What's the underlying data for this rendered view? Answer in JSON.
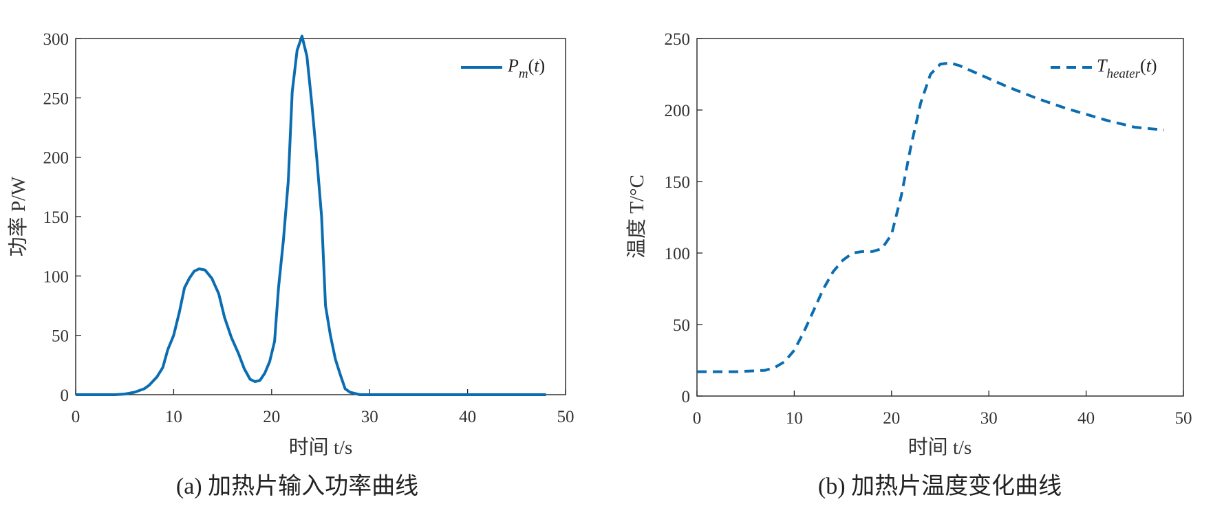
{
  "chart_data": [
    {
      "type": "line",
      "caption": "(a) 加热片输入功率曲线",
      "xlabel": "时间 t/s",
      "ylabel": "功率 P/W",
      "xlim": [
        0,
        50
      ],
      "ylim": [
        0,
        300
      ],
      "xticks": [
        "0",
        "10",
        "20",
        "30",
        "40",
        "50"
      ],
      "yticks": [
        "0",
        "50",
        "100",
        "150",
        "200",
        "250",
        "300"
      ],
      "legend": {
        "label": "P_m(t)",
        "position": "top-right"
      },
      "grid": false,
      "color": "#0b6db1",
      "dash": "solid",
      "series": [
        {
          "name": "Pm(t)",
          "x": [
            0,
            2,
            4,
            5,
            6,
            7,
            7.5,
            8.3,
            8.9,
            9.4,
            10,
            10.6,
            11.1,
            11.6,
            12.1,
            12.6,
            13.2,
            13.9,
            14.6,
            15.2,
            15.9,
            16.6,
            17.2,
            17.8,
            18.3,
            18.8,
            19.3,
            19.8,
            20.3,
            20.7,
            21.2,
            21.7,
            22.1,
            22.6,
            23.1,
            23.6,
            24.1,
            24.6,
            25.1,
            25.5,
            26,
            26.5,
            27,
            27.5,
            28,
            29,
            30,
            35,
            40,
            45,
            48
          ],
          "y": [
            0,
            0,
            0,
            0.5,
            2,
            5,
            8,
            15,
            23,
            38,
            50,
            70,
            90,
            98,
            104,
            106,
            105,
            98,
            85,
            65,
            48,
            35,
            22,
            13,
            11,
            12,
            18,
            28,
            45,
            90,
            130,
            180,
            255,
            290,
            302,
            285,
            245,
            200,
            150,
            75,
            50,
            30,
            17,
            5,
            2,
            0,
            0,
            0,
            0,
            0,
            0
          ]
        }
      ]
    },
    {
      "type": "line",
      "caption": "(b) 加热片温度变化曲线",
      "xlabel": "时间 t/s",
      "ylabel": "温度 T/°C",
      "xlim": [
        0,
        50
      ],
      "ylim": [
        0,
        250
      ],
      "xticks": [
        "0",
        "10",
        "20",
        "30",
        "40",
        "50"
      ],
      "yticks": [
        "0",
        "50",
        "100",
        "150",
        "200",
        "250"
      ],
      "legend": {
        "label": "T_heater(t)",
        "position": "top-right"
      },
      "grid": false,
      "color": "#0b6db1",
      "dash": "dashed",
      "series": [
        {
          "name": "Theater(t)",
          "x": [
            0,
            4,
            7,
            8,
            9,
            10,
            11,
            12,
            13,
            14,
            15,
            16,
            17,
            18,
            19,
            20,
            21,
            22,
            23,
            24,
            25,
            26,
            27,
            28,
            30,
            32,
            35,
            38,
            40,
            42,
            45,
            48
          ],
          "y": [
            17,
            17,
            18,
            20,
            24,
            32,
            45,
            60,
            75,
            87,
            95,
            100,
            101,
            101,
            103,
            113,
            140,
            175,
            205,
            225,
            232,
            233,
            231,
            228,
            222,
            216,
            208,
            201,
            197,
            193,
            188,
            186
          ]
        }
      ]
    }
  ]
}
